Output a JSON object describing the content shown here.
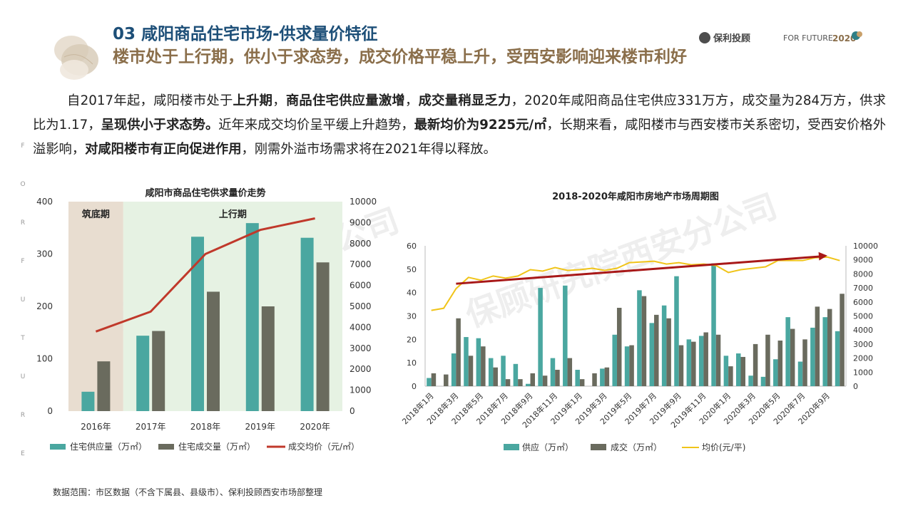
{
  "header": {
    "title": "03 咸阳商品住宅市场-供求量价特征",
    "subtitle": "楼市处于上行期，供小于求态势，成交价格平稳上升，受西安影响迎来楼市利好",
    "logo_text": "保利投顾",
    "logo_tagline": "FOR FUTURE",
    "logo_year": "2020"
  },
  "side_letters": [
    "F",
    "O",
    "R",
    "F",
    "U",
    "T",
    "U",
    "R",
    "E"
  ],
  "paragraph": [
    {
      "t": "自2017年起，咸阳楼市处于",
      "b": false
    },
    {
      "t": "上升期",
      "b": true
    },
    {
      "t": "，",
      "b": false
    },
    {
      "t": "商品住宅供应量激增",
      "b": true
    },
    {
      "t": "，",
      "b": false
    },
    {
      "t": "成交量稍显乏力",
      "b": true
    },
    {
      "t": "，2020年咸阳商品住宅供应331万方，成交量为284万方，供求比为1.17，",
      "b": false
    },
    {
      "t": "呈现供小于求态势。",
      "b": true
    },
    {
      "t": "近年来成交均价呈平缓上升趋势，",
      "b": false
    },
    {
      "t": "最新均价为9225元/㎡",
      "b": true
    },
    {
      "t": "，长期来看，咸阳楼市与西安楼市关系密切，受西安价格外溢影响，",
      "b": false
    },
    {
      "t": "对咸阳楼市有正向促进作用",
      "b": true
    },
    {
      "t": "，刚需外溢市场需求将在2021年得以释放。",
      "b": false
    }
  ],
  "watermark": "保顾研究院西安分公司",
  "source_note": "数据范围：市区数据（不含下属县、县级市）、保利投顾西安市场部整理",
  "colors": {
    "supply": "#4aa7a0",
    "deal": "#6a6b5e",
    "price_left": "#c0392b",
    "price_right": "#f0c419",
    "trend": "#a81818",
    "phase_low": "#e8ddd0",
    "phase_up": "#e6f2e3"
  },
  "chart_data": [
    {
      "type": "bar",
      "title": "咸阳市商品住宅供求量价走势",
      "categories": [
        "2016年",
        "2017年",
        "2018年",
        "2019年",
        "2020年"
      ],
      "phases": [
        {
          "label": "筑底期",
          "categories": [
            "2016年"
          ]
        },
        {
          "label": "上行期",
          "categories": [
            "2017年",
            "2018年",
            "2019年",
            "2020年"
          ]
        }
      ],
      "series": [
        {
          "name": "住宅供应量（万㎡）",
          "kind": "bar",
          "axis": "left",
          "values": [
            37,
            144,
            333,
            359,
            331
          ]
        },
        {
          "name": "住宅成交量（万㎡）",
          "kind": "bar",
          "axis": "left",
          "values": [
            95,
            153,
            228,
            200,
            284
          ]
        },
        {
          "name": "成交均价（元/㎡）",
          "kind": "line",
          "axis": "right",
          "values": [
            3800,
            4750,
            7500,
            8650,
            9200
          ]
        }
      ],
      "ylim_left": [
        0,
        400
      ],
      "yticks_left": [
        0,
        100,
        200,
        300,
        400
      ],
      "ylim_right": [
        0,
        10000
      ],
      "yticks_right": [
        0,
        1000,
        2000,
        3000,
        4000,
        5000,
        6000,
        7000,
        8000,
        9000,
        10000
      ]
    },
    {
      "type": "bar",
      "title": "2018-2020年咸阳市房地产市场周期图",
      "categories": [
        "2018年1月",
        "2018年2月",
        "2018年3月",
        "2018年4月",
        "2018年5月",
        "2018年6月",
        "2018年7月",
        "2018年8月",
        "2018年9月",
        "2018年10月",
        "2018年11月",
        "2018年12月",
        "2019年1月",
        "2019年2月",
        "2019年3月",
        "2019年4月",
        "2019年5月",
        "2019年6月",
        "2019年7月",
        "2019年8月",
        "2019年9月",
        "2019年10月",
        "2019年11月",
        "2019年12月",
        "2020年1月",
        "2020年2月",
        "2020年3月",
        "2020年4月",
        "2020年5月",
        "2020年6月",
        "2020年7月",
        "2020年8月",
        "2020年9月",
        "2020年10月"
      ],
      "tick_labels": [
        "2018年1月",
        "2018年3月",
        "2018年5月",
        "2018年7月",
        "2018年9月",
        "2018年11月",
        "2019年1月",
        "2019年3月",
        "2019年5月",
        "2019年7月",
        "2019年9月",
        "2019年11月",
        "2020年1月",
        "2020年3月",
        "2020年5月",
        "2020年7月",
        "2020年9月"
      ],
      "series": [
        {
          "name": "供应（万㎡）",
          "kind": "bar",
          "axis": "left",
          "values": [
            3.5,
            0,
            14,
            21,
            20.5,
            12,
            13,
            9.5,
            1,
            42,
            12,
            43,
            7,
            0,
            7.5,
            22,
            17,
            41,
            27,
            34.5,
            47,
            20,
            21.5,
            52.5,
            13,
            14,
            4.5,
            4,
            11.5,
            29.5,
            10.5,
            25,
            29.5,
            23.5
          ]
        },
        {
          "name": "成交（万㎡）",
          "kind": "bar",
          "axis": "left",
          "values": [
            5.5,
            5,
            29,
            13,
            17,
            8,
            3,
            3,
            5.5,
            4.5,
            7,
            12,
            3,
            5.5,
            8,
            33.5,
            17.5,
            38.5,
            30.5,
            29,
            17.5,
            19,
            23,
            22,
            8.5,
            12.5,
            18,
            22,
            19.5,
            24.5,
            20,
            34,
            33,
            39.5
          ]
        },
        {
          "name": "均价(元/平)",
          "kind": "line",
          "axis": "right",
          "values": [
            5400,
            5550,
            6950,
            7750,
            7550,
            7850,
            7700,
            7850,
            8300,
            8200,
            8450,
            8250,
            8300,
            8400,
            8250,
            8400,
            8800,
            8850,
            8900,
            8700,
            8800,
            8650,
            8700,
            8600,
            8100,
            8300,
            8400,
            8500,
            8950,
            8950,
            8950,
            9150,
            9200,
            8950
          ]
        }
      ],
      "trend_arrow": {
        "from": [
          2,
          7300
        ],
        "to": [
          32,
          9300
        ]
      },
      "ylim_left": [
        0,
        60
      ],
      "yticks_left": [
        0,
        10,
        20,
        30,
        40,
        50,
        60
      ],
      "ylim_right": [
        0,
        10000
      ],
      "yticks_right": [
        0,
        1000,
        2000,
        3000,
        4000,
        5000,
        6000,
        7000,
        8000,
        9000,
        10000
      ]
    }
  ]
}
